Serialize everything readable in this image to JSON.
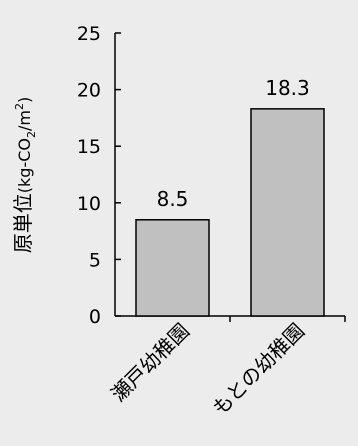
{
  "chart_data": {
    "type": "bar",
    "categories": [
      "瀬戸幼稚園",
      "もとの幼稚園"
    ],
    "values": [
      8.5,
      18.3
    ],
    "data_labels": [
      "8.5",
      "18.3"
    ],
    "ylabel_main": "原単位",
    "ylabel_unit": "(kg-CO",
    "ylabel_sub": "2",
    "ylabel_unit2": "/m",
    "ylabel_sup": "2",
    "ylabel_close": ")",
    "ylim": [
      0,
      25
    ],
    "yticks": [
      "0",
      "5",
      "10",
      "15",
      "20",
      "25"
    ],
    "grid": false,
    "legend": false,
    "bar_color": "#c0c0c0",
    "background": "#ececec"
  }
}
